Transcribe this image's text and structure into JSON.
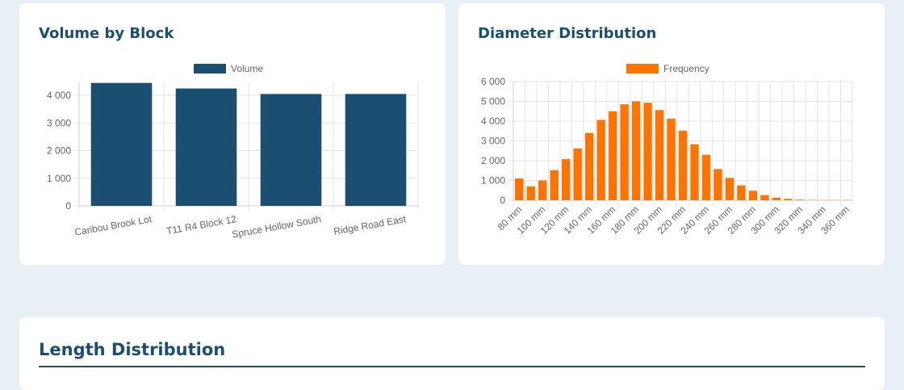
{
  "cards": {
    "volume_title": "Volume by Block",
    "diameter_title": "Diameter Distribution",
    "length_title": "Length Distribution"
  },
  "colors": {
    "background": "#e8eff6",
    "card": "#ffffff",
    "title": "#1b4f72",
    "volume_bar": "#1b4f72",
    "frequency_bar": "#ff7300",
    "grid": "#e5e5e5",
    "tick_text": "#666666"
  },
  "chart_data": [
    {
      "type": "bar",
      "title": "Volume by Block",
      "categories": [
        "Caribou Brook Lot",
        "T11 R4 Block 12",
        "Spruce Hollow South",
        "Ridge Road East"
      ],
      "series": [
        {
          "name": "Volume",
          "values": [
            4450,
            4250,
            4050,
            4050
          ]
        }
      ],
      "ylim": [
        0,
        4500
      ],
      "yticks": [
        0,
        1000,
        2000,
        3000,
        4000
      ],
      "ytick_labels": [
        "0",
        "1 000",
        "2 000",
        "3 000",
        "4 000"
      ],
      "grid": true,
      "legend": "top"
    },
    {
      "type": "bar",
      "title": "Diameter Distribution",
      "categories": [
        "80 mm",
        "90 mm",
        "100 mm",
        "110 mm",
        "120 mm",
        "130 mm",
        "140 mm",
        "150 mm",
        "160 mm",
        "170 mm",
        "180 mm",
        "190 mm",
        "200 mm",
        "210 mm",
        "220 mm",
        "230 mm",
        "240 mm",
        "250 mm",
        "260 mm",
        "270 mm",
        "280 mm",
        "290 mm",
        "300 mm",
        "310 mm",
        "320 mm",
        "330 mm",
        "340 mm",
        "350 mm",
        "360 mm"
      ],
      "xtick_labels": [
        "80 mm",
        "100 mm",
        "120 mm",
        "140 mm",
        "160 mm",
        "180 mm",
        "200 mm",
        "220 mm",
        "240 mm",
        "260 mm",
        "280 mm",
        "300 mm",
        "320 mm",
        "340 mm",
        "360 mm"
      ],
      "series": [
        {
          "name": "Frequency",
          "values": [
            1100,
            700,
            1000,
            1520,
            2080,
            2620,
            3400,
            4060,
            4500,
            4850,
            5000,
            4930,
            4560,
            4120,
            3520,
            2830,
            2300,
            1580,
            1130,
            750,
            480,
            260,
            130,
            70,
            30,
            15,
            10,
            10,
            10
          ]
        }
      ],
      "ylim": [
        0,
        6000
      ],
      "yticks": [
        0,
        1000,
        2000,
        3000,
        4000,
        5000,
        6000
      ],
      "ytick_labels": [
        "0",
        "1 000",
        "2 000",
        "3 000",
        "4 000",
        "5 000",
        "6 000"
      ],
      "grid": true,
      "legend": "top"
    }
  ]
}
